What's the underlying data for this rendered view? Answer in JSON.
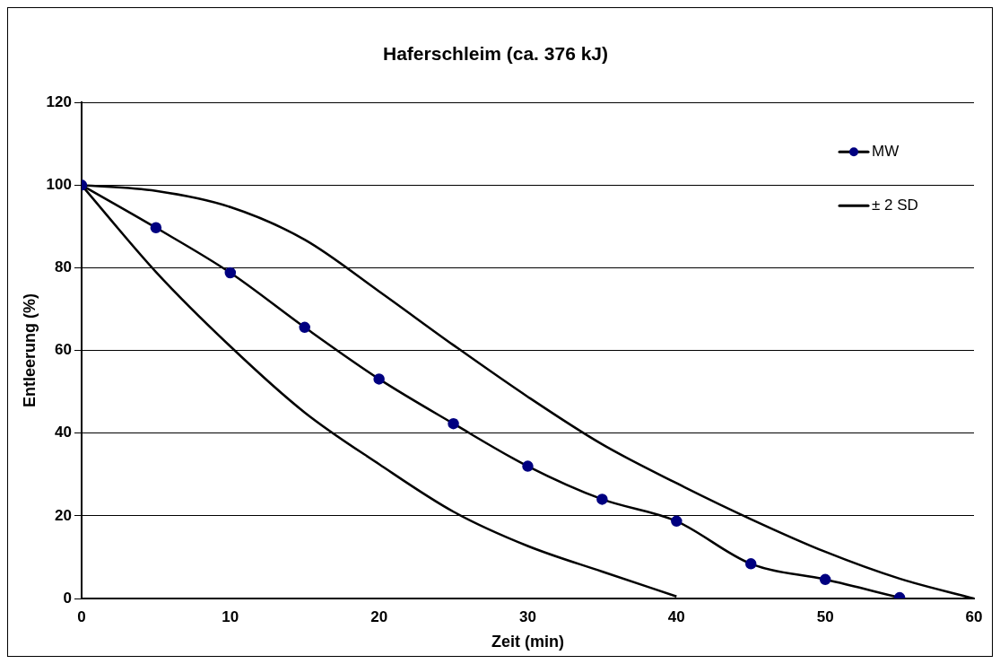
{
  "chart_data": {
    "type": "line",
    "title": "Haferschleim (ca. 376 kJ)",
    "xlabel": "Zeit (min)",
    "ylabel": "Entleerung (%)",
    "x": [
      0,
      5,
      10,
      15,
      20,
      25,
      30,
      35,
      40,
      45,
      50,
      55,
      60
    ],
    "series": [
      {
        "name": "MW",
        "color": "#000080",
        "marker": "circle",
        "x": [
          0,
          5,
          10,
          15,
          20,
          25,
          30,
          35,
          40,
          45,
          50,
          55
        ],
        "values": [
          100,
          89.7,
          78.8,
          65.6,
          53.1,
          42.3,
          32.0,
          24.0,
          18.7,
          8.4,
          4.6,
          0.2
        ]
      },
      {
        "name": "± 2 SD",
        "color": "#000000",
        "marker": "none",
        "values": [
          100,
          98.6,
          94.7,
          86.8,
          74.3,
          61.3,
          48.8,
          37.3,
          27.9,
          19.2,
          11.3,
          4.8,
          0
        ]
      },
      {
        "color": "#000000",
        "marker": "none",
        "x": [
          0,
          5,
          10,
          15,
          20,
          25,
          30,
          35,
          40
        ],
        "values": [
          100,
          79,
          61,
          45,
          32.5,
          21,
          12.7,
          6.5,
          0.5
        ]
      }
    ],
    "xlim": [
      0,
      60
    ],
    "xticks": [
      0,
      10,
      20,
      30,
      40,
      50,
      60
    ],
    "ylim": [
      0,
      120
    ],
    "yticks": [
      0,
      20,
      40,
      60,
      80,
      100,
      120
    ],
    "grid": "y",
    "legend": "top right"
  }
}
